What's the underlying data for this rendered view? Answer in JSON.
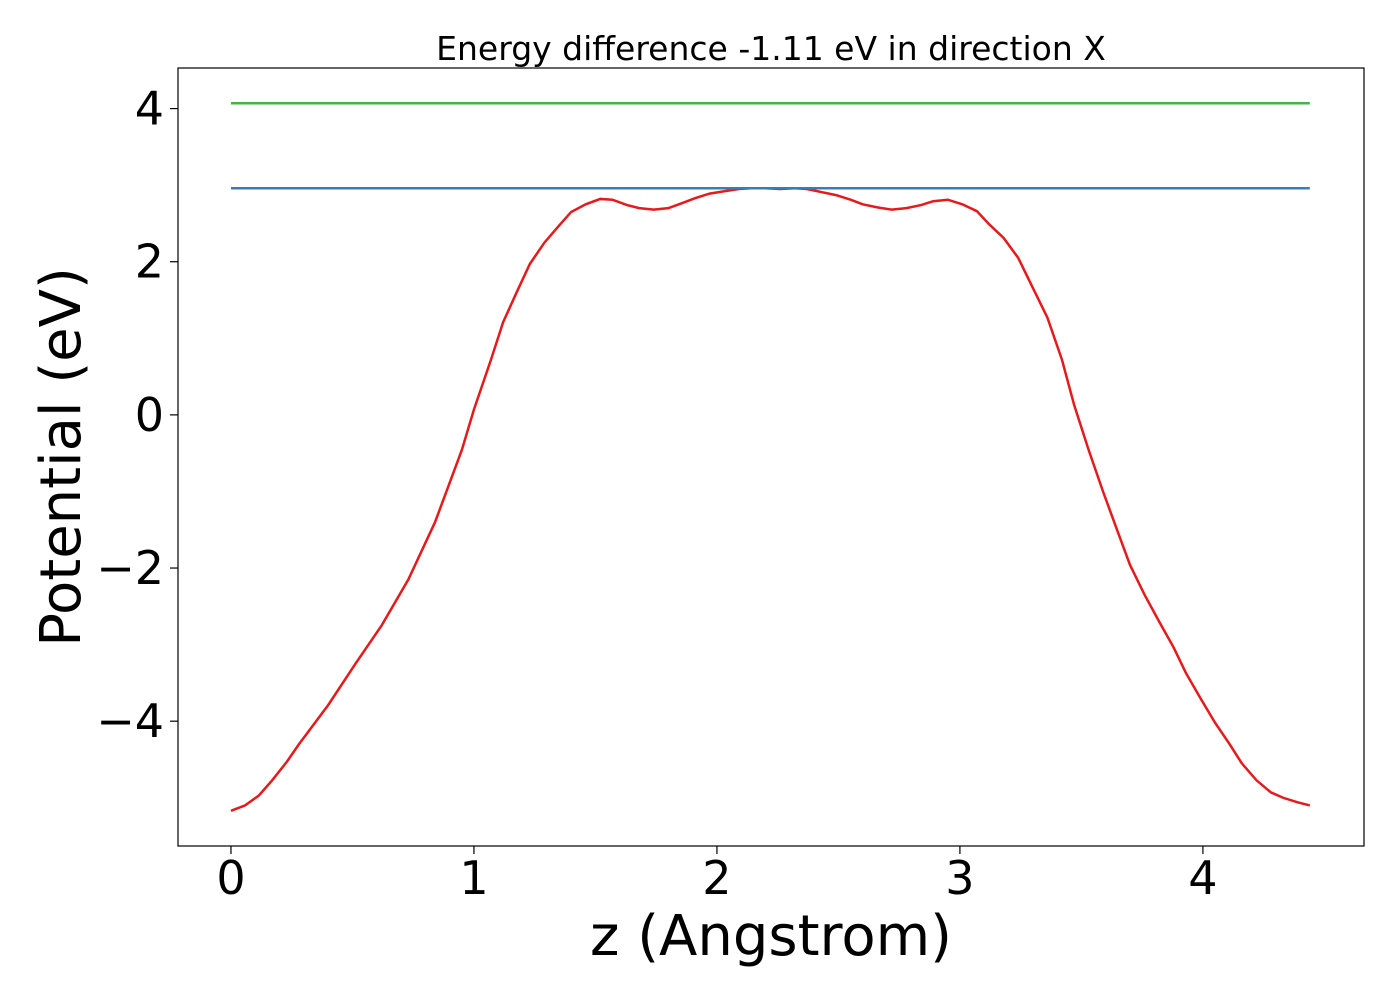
{
  "chart_data": {
    "type": "line",
    "title": "Energy difference -1.11 eV in direction X",
    "x_label": "z (Angstrom)",
    "y_label": "Potential (eV)",
    "xlim": [
      -0.218,
      4.663
    ],
    "ylim": [
      -5.63,
      4.53
    ],
    "xticks": [
      0,
      1,
      2,
      3,
      4
    ],
    "yticks": [
      {
        "value": -4,
        "label": "−4"
      },
      {
        "value": -2,
        "label": "−2"
      },
      0,
      2,
      4
    ],
    "grid": false,
    "series": [
      {
        "color": "#e41a1c",
        "x": [
          0,
          0.058,
          0.115,
          0.17,
          0.23,
          0.28,
          0.4,
          0.51,
          0.62,
          0.73,
          0.84,
          0.95,
          1.0,
          1.07,
          1.12,
          1.18,
          1.23,
          1.29,
          1.35,
          1.4,
          1.46,
          1.52,
          1.57,
          1.63,
          1.68,
          1.74,
          1.8,
          1.86,
          1.91,
          1.97,
          2.03,
          2.09,
          2.14,
          2.2,
          2.26,
          2.32,
          2.37,
          2.43,
          2.49,
          2.55,
          2.6,
          2.66,
          2.72,
          2.78,
          2.84,
          2.89,
          2.95,
          3.01,
          3.07,
          3.12,
          3.18,
          3.24,
          3.3,
          3.36,
          3.42,
          3.47,
          3.53,
          3.59,
          3.65,
          3.7,
          3.76,
          3.82,
          3.88,
          3.93,
          3.99,
          4.05,
          4.11,
          4.16,
          4.22,
          4.28,
          4.33,
          4.39,
          4.44
        ],
        "values": [
          -5.17,
          -5.1,
          -4.97,
          -4.77,
          -4.53,
          -4.3,
          -3.79,
          -3.26,
          -2.75,
          -2.15,
          -1.4,
          -0.46,
          0.07,
          0.72,
          1.21,
          1.63,
          1.97,
          2.25,
          2.47,
          2.65,
          2.75,
          2.82,
          2.81,
          2.74,
          2.7,
          2.68,
          2.7,
          2.77,
          2.83,
          2.89,
          2.92,
          2.95,
          2.96,
          2.96,
          2.95,
          2.96,
          2.95,
          2.91,
          2.87,
          2.81,
          2.75,
          2.71,
          2.68,
          2.7,
          2.74,
          2.79,
          2.81,
          2.75,
          2.66,
          2.49,
          2.31,
          2.05,
          1.66,
          1.27,
          0.72,
          0.13,
          -0.46,
          -1.01,
          -1.53,
          -1.96,
          -2.35,
          -2.7,
          -3.04,
          -3.37,
          -3.7,
          -4.02,
          -4.3,
          -4.55,
          -4.77,
          -4.93,
          -5.0,
          -5.06,
          -5.1
        ]
      },
      {
        "color": "#377eb8",
        "x": [
          0,
          4.44
        ],
        "values": [
          2.96,
          2.96
        ]
      },
      {
        "color": "#4daf4a",
        "x": [
          0,
          4.44
        ],
        "values": [
          4.07,
          4.07
        ]
      }
    ]
  }
}
